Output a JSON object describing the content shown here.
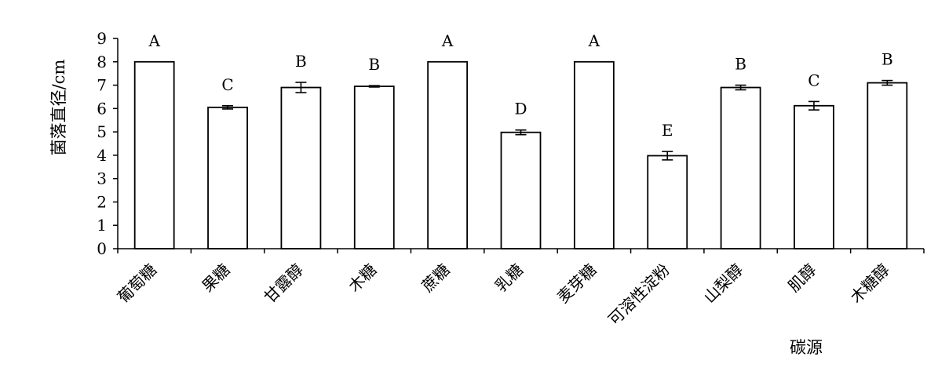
{
  "chart_data": {
    "type": "bar",
    "title": "",
    "xlabel": "碳源",
    "ylabel": "菌落直径/cm",
    "ylim": [
      0,
      9
    ],
    "yticks": [
      "0",
      "1",
      "2",
      "3",
      "4",
      "5",
      "6",
      "7",
      "8",
      "9"
    ],
    "grid": false,
    "categories": [
      "葡萄糖",
      "果糖",
      "甘露醇",
      "木糖",
      "蔗糖",
      "乳糖",
      "麦芽糖",
      "可溶性淀粉",
      "山梨醇",
      "肌醇",
      "木糖醇"
    ],
    "values": [
      8.0,
      6.05,
      6.9,
      6.95,
      8.0,
      4.98,
      8.0,
      3.98,
      6.9,
      6.12,
      7.1
    ],
    "errors": [
      0,
      0.07,
      0.22,
      0.03,
      0,
      0.1,
      0,
      0.18,
      0.1,
      0.18,
      0.1
    ],
    "significance_letters": [
      "A",
      "C",
      "B",
      "B",
      "A",
      "D",
      "A",
      "E",
      "B",
      "C",
      "B"
    ],
    "bar_fill": "#ffffff",
    "bar_stroke": "#000000"
  }
}
